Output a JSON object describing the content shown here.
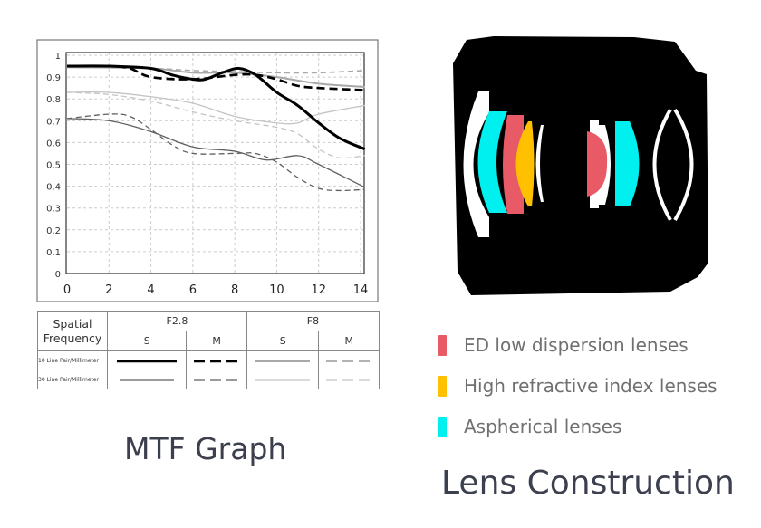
{
  "chart_data": {
    "type": "line",
    "title": "MTF Graph",
    "xlabel": "",
    "ylabel": "",
    "xlim": [
      0,
      14
    ],
    "ylim": [
      0,
      1
    ],
    "xticks": [
      "0",
      "2",
      "4",
      "6",
      "8",
      "10",
      "12",
      "14"
    ],
    "yticks": [
      "0",
      "0.1",
      "0.2",
      "0.3",
      "0.4",
      "0.5",
      "0.6",
      "0.7",
      "0.8",
      "0.9",
      "1"
    ],
    "grid": true,
    "series": [
      {
        "aperture": "F2.8",
        "type": "S",
        "frequency": "10 Line Pair/Millimeter",
        "color": "#000000",
        "width": 3,
        "dash": false,
        "x": [
          0,
          2,
          4,
          5,
          6,
          6.6,
          7.4,
          8.2,
          9,
          10,
          11,
          12,
          13,
          14.2
        ],
        "y": [
          0.95,
          0.95,
          0.94,
          0.91,
          0.89,
          0.89,
          0.92,
          0.94,
          0.91,
          0.83,
          0.77,
          0.69,
          0.62,
          0.57
        ]
      },
      {
        "aperture": "F2.8",
        "type": "M",
        "frequency": "10 Line Pair/Millimeter",
        "color": "#000000",
        "width": 2.6,
        "dash": true,
        "x": [
          0,
          2,
          3,
          4,
          6,
          8,
          9,
          10,
          11,
          12,
          14.2
        ],
        "y": [
          0.95,
          0.95,
          0.94,
          0.9,
          0.89,
          0.91,
          0.91,
          0.89,
          0.86,
          0.85,
          0.84
        ]
      },
      {
        "aperture": "F8",
        "type": "S",
        "frequency": "10 Line Pair/Millimeter",
        "color": "#a8a8a8",
        "width": 2,
        "dash": false,
        "x": [
          0,
          4,
          6,
          8,
          10,
          12,
          14.2
        ],
        "y": [
          0.945,
          0.94,
          0.92,
          0.92,
          0.9,
          0.87,
          0.855
        ]
      },
      {
        "aperture": "F8",
        "type": "M",
        "frequency": "10 Line Pair/Millimeter",
        "color": "#a8a8a8",
        "width": 1.6,
        "dash": true,
        "x": [
          0,
          4,
          6,
          8,
          10,
          12,
          14.2
        ],
        "y": [
          0.945,
          0.94,
          0.93,
          0.925,
          0.92,
          0.92,
          0.93
        ]
      },
      {
        "aperture": "F2.8",
        "type": "S",
        "frequency": "30 Line Pair/Millimeter",
        "color": "#606060",
        "width": 1.3,
        "dash": false,
        "x": [
          0,
          2,
          4,
          6,
          8,
          9.5,
          11,
          12,
          14.2
        ],
        "y": [
          0.71,
          0.7,
          0.65,
          0.58,
          0.56,
          0.52,
          0.54,
          0.5,
          0.395
        ]
      },
      {
        "aperture": "F2.8",
        "type": "M",
        "frequency": "30 Line Pair/Millimeter",
        "color": "#606060",
        "width": 1.3,
        "dash": true,
        "x": [
          0,
          2,
          3,
          4,
          5,
          6,
          8,
          9,
          10,
          11,
          12,
          13,
          14.2
        ],
        "y": [
          0.71,
          0.73,
          0.72,
          0.66,
          0.59,
          0.55,
          0.55,
          0.55,
          0.51,
          0.44,
          0.39,
          0.38,
          0.385
        ]
      },
      {
        "aperture": "F8",
        "type": "S",
        "frequency": "30 Line Pair/Millimeter",
        "color": "#c4c4c4",
        "width": 1.3,
        "dash": false,
        "x": [
          0,
          2,
          4,
          6,
          8,
          10,
          11,
          12,
          14.2
        ],
        "y": [
          0.83,
          0.83,
          0.81,
          0.78,
          0.72,
          0.69,
          0.69,
          0.73,
          0.77
        ]
      },
      {
        "aperture": "F8",
        "type": "M",
        "frequency": "30 Line Pair/Millimeter",
        "color": "#c4c4c4",
        "width": 1.3,
        "dash": true,
        "x": [
          0,
          2,
          4,
          6,
          8,
          10,
          11,
          12,
          13,
          14.2
        ],
        "y": [
          0.83,
          0.82,
          0.79,
          0.74,
          0.7,
          0.67,
          0.64,
          0.57,
          0.53,
          0.54
        ]
      }
    ]
  },
  "legend_table": {
    "header": "Spatial Frequency",
    "apertures": [
      "F2.8",
      "F8"
    ],
    "types": [
      "S",
      "M",
      "S",
      "M"
    ],
    "rows": [
      "10 Line Pair/Millimeter",
      "30 Line Pair/Millimeter"
    ]
  },
  "lens_legend": [
    {
      "label": "ED low dispersion lenses",
      "color": "#e85a66"
    },
    {
      "label": "High refractive index lenses",
      "color": "#ffc000"
    },
    {
      "label": "Aspherical lenses",
      "color": "#00f0f0"
    }
  ],
  "titles": {
    "mtf": "MTF Graph",
    "lens": "Lens Construction"
  }
}
